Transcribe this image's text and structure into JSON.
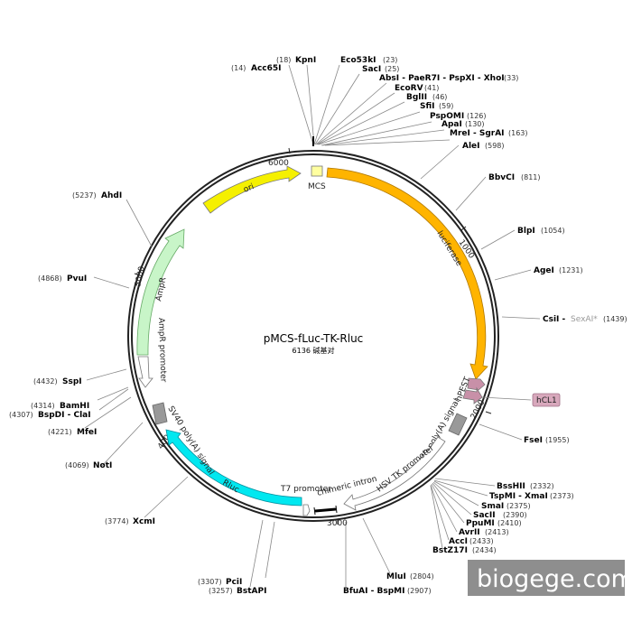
{
  "plasmid": {
    "name": "pMCS-fLuc-TK-Rluc",
    "size_text": "6136 碱基对"
  },
  "ticks": [
    "1000",
    "2000",
    "3000",
    "4000",
    "5000",
    "6000"
  ],
  "features": {
    "ori": "ori",
    "mcs": "MCS",
    "luciferase": "luciferase",
    "hpest": "hPEST",
    "hcl1": "hCL1",
    "sv40_right": "SV40 poly(A) signal",
    "hsv_tk": "HSV TK promoter",
    "chimeric_intron": "chimeric intron",
    "t7_promoter": "T7 promoter",
    "rluc": "Rluc",
    "sv40_left": "SV40 poly(A) signal",
    "ampr": "AmpR",
    "ampr_promoter": "AmpR promoter"
  },
  "sites": {
    "acc65i": {
      "pos": "(14)",
      "name": "Acc65I"
    },
    "kpni": {
      "pos": "(18)",
      "name": "KpnI"
    },
    "eco53ki": {
      "name": "Eco53kI",
      "pos": "(23)"
    },
    "saci": {
      "name": "SacI",
      "pos": "(25)"
    },
    "absi": {
      "name": "AbsI - PaeR7I - PspXI - XhoI",
      "pos": "(33)"
    },
    "ecorv": {
      "name": "EcoRV",
      "pos": "(41)"
    },
    "bglii": {
      "name": "BglII",
      "pos": "(46)"
    },
    "sfii": {
      "name": "SfiI",
      "pos": "(59)"
    },
    "psp0mi": {
      "name": "PspOMI",
      "pos": "(126)"
    },
    "apai": {
      "name": "ApaI",
      "pos": "(130)"
    },
    "mrei": {
      "name": "MreI - SgrAI",
      "pos": "(163)"
    },
    "alei": {
      "name": "AleI",
      "pos": "(598)"
    },
    "bbvci": {
      "name": "BbvCI",
      "pos": "(811)"
    },
    "blpi": {
      "name": "BlpI",
      "pos": "(1054)"
    },
    "agei": {
      "name": "AgeI",
      "pos": "(1231)"
    },
    "csii": {
      "name": "CsiI - ",
      "name2": "SexAI*",
      "pos": "(1439)"
    },
    "fsei": {
      "name": "FseI",
      "pos": "(1955)"
    },
    "bsshii": {
      "name": "BssHII",
      "pos": "(2332)"
    },
    "tspmi": {
      "name": "TspMI - XmaI",
      "pos": "(2373)"
    },
    "smai": {
      "name": "SmaI",
      "pos": "(2375)"
    },
    "sacii": {
      "name": "SacII",
      "pos": "(2390)"
    },
    "ppumi": {
      "name": "PpuMI",
      "pos": "(2410)"
    },
    "avrii": {
      "name": "AvrII",
      "pos": "(2413)"
    },
    "acci": {
      "name": "AccI",
      "pos": "(2433)"
    },
    "bstz17i": {
      "name": "BstZ17I",
      "pos": "(2434)"
    },
    "mlui": {
      "name": "MluI",
      "pos": "(2804)"
    },
    "bfuai": {
      "name": "BfuAI - BspMI",
      "pos": "(2907)"
    },
    "pcii": {
      "pos": "(3307)",
      "name": "PciI"
    },
    "bstapi": {
      "pos": "(3257)",
      "name": "BstAPI"
    },
    "xcmi": {
      "pos": "(3774)",
      "name": "XcmI"
    },
    "noti": {
      "pos": "(4069)",
      "name": "NotI"
    },
    "mfei": {
      "pos": "(4221)",
      "name": "MfeI"
    },
    "bspdi": {
      "pos": "(4307)",
      "name": "BspDI - ClaI"
    },
    "bamhi": {
      "pos": "(4314)",
      "name": "BamHI"
    },
    "sspi": {
      "pos": "(4432)",
      "name": "SspI"
    },
    "pvui": {
      "pos": "(4868)",
      "name": "PvuI"
    },
    "ahdi": {
      "pos": "(5237)",
      "name": "AhdI"
    }
  },
  "watermark": "biogege.com",
  "colors": {
    "ori": "#f5f000",
    "mcs": "#ffffa0",
    "luciferase": "#ffb400",
    "hpest": "#c890a8",
    "gray": "#999999",
    "rluc": "#00e8f0",
    "ampr": "#c8f5c8"
  }
}
